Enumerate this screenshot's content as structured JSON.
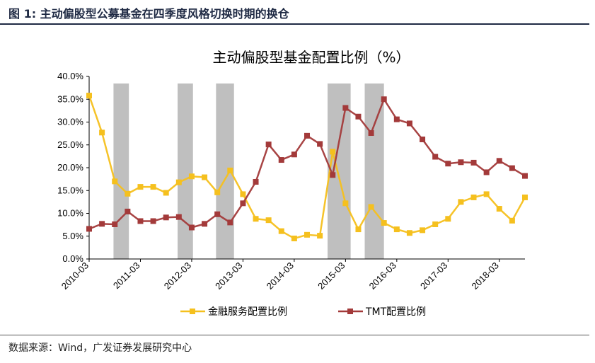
{
  "header": {
    "title": "图 1:  主动偏股型公募基金在四季度风格切换时期的换仓"
  },
  "source": "数据来源：Wind，广发证券发展研究中心",
  "colors": {
    "finance": "#F5C01E",
    "tmt": "#A33A3A",
    "shade": "#BFBFBF",
    "header": "#1F2A44"
  },
  "chart_data": {
    "type": "line",
    "title": "主动偏股型基金配置比例（%）",
    "xlabel": "",
    "ylabel": "",
    "ylim": [
      0,
      0.4
    ],
    "y_ticks": [
      "0.0%",
      "5.0%",
      "10.0%",
      "15.0%",
      "20.0%",
      "25.0%",
      "30.0%",
      "35.0%",
      "40.0%"
    ],
    "x_tick_labels": [
      "2010-03",
      "2011-03",
      "2012-03",
      "2013-03",
      "2014-03",
      "2015-03",
      "2016-03",
      "2017-03",
      "2018-03"
    ],
    "x_tick_index": [
      0,
      4,
      8,
      12,
      16,
      20,
      24,
      28,
      32
    ],
    "quarters": [
      "2010-03",
      "2010-06",
      "2010-09",
      "2010-12",
      "2011-03",
      "2011-06",
      "2011-09",
      "2011-12",
      "2012-03",
      "2012-06",
      "2012-09",
      "2012-12",
      "2013-03",
      "2013-06",
      "2013-09",
      "2013-12",
      "2014-03",
      "2014-06",
      "2014-09",
      "2014-12",
      "2015-03",
      "2015-06",
      "2015-09",
      "2015-12",
      "2016-03",
      "2016-06",
      "2016-09",
      "2016-12",
      "2017-03",
      "2017-06",
      "2017-09",
      "2017-12",
      "2018-03",
      "2018-06",
      "2018-09"
    ],
    "shaded_periods": [
      [
        1.9,
        3.1
      ],
      [
        6.9,
        8.1
      ],
      [
        9.9,
        11.3
      ],
      [
        18.6,
        20.4
      ],
      [
        21.5,
        23.0
      ]
    ],
    "grid": false,
    "legend_position": "bottom",
    "series": [
      {
        "name": "金融服务配置比例",
        "values": [
          0.358,
          0.277,
          0.17,
          0.143,
          0.158,
          0.158,
          0.145,
          0.168,
          0.181,
          0.179,
          0.146,
          0.194,
          0.142,
          0.088,
          0.085,
          0.061,
          0.045,
          0.053,
          0.051,
          0.235,
          0.122,
          0.065,
          0.114,
          0.079,
          0.065,
          0.057,
          0.063,
          0.076,
          0.088,
          0.125,
          0.135,
          0.142,
          0.11,
          0.084,
          0.135
        ]
      },
      {
        "name": "TMT配置比例",
        "values": [
          0.066,
          0.077,
          0.076,
          0.104,
          0.083,
          0.083,
          0.091,
          0.092,
          0.069,
          0.077,
          0.098,
          0.08,
          0.122,
          0.169,
          0.251,
          0.217,
          0.229,
          0.27,
          0.252,
          0.184,
          0.331,
          0.312,
          0.276,
          0.35,
          0.306,
          0.297,
          0.262,
          0.224,
          0.209,
          0.212,
          0.211,
          0.19,
          0.215,
          0.199,
          0.182
        ]
      }
    ]
  }
}
